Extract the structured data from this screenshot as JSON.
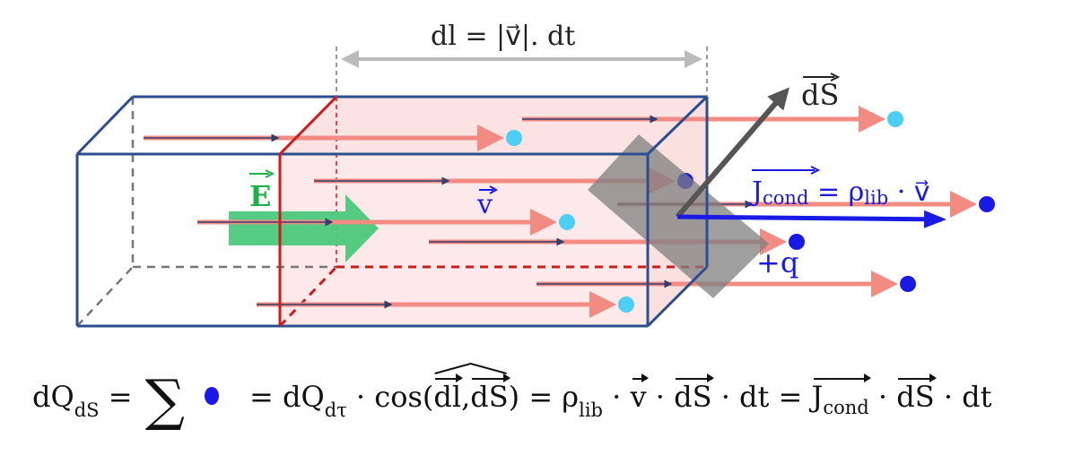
{
  "labels": {
    "dl": "dl = |v⃗|. dt",
    "dS": "dS",
    "E": "E",
    "v": "v",
    "J": "J",
    "J_sub": "cond",
    "J_eq": " = ρ",
    "J_rho_sub": "lib",
    "J_v": " · v⃗",
    "charge": "+q"
  },
  "formula": {
    "p1": "dQ",
    "p1_sub": "dS",
    "p2": " = ",
    "p3": "= dQ",
    "p3_sub": "dτ",
    "p4": " · cos(",
    "p5": "dl",
    "p6": ",",
    "p7": "dS",
    "p8": ") = ρ",
    "p8_sub": "lib",
    "p9": " · ",
    "p10": "v",
    "p11": " · ",
    "p12": "dS",
    "p13": " · dt = ",
    "p14": "J",
    "p14_sub": "cond",
    "p15": " · ",
    "p16": "dS",
    "p17": " · dt"
  },
  "colors": {
    "box": "#2b4f8e",
    "volume_edge": "#d11a1a",
    "volume_fill": "#fde9e9",
    "trajectory": "#f28b82",
    "field": "#4cc97c",
    "current": "#1a1ae6",
    "charge_inside": "#1a1ae6",
    "charge_passed": "#4dcff5",
    "surface": "#7f7f7f"
  },
  "particles": [
    {
      "color": "charge_passed"
    },
    {
      "color": "charge_passed"
    },
    {
      "color": "charge_inside"
    },
    {
      "color": "charge_inside"
    },
    {
      "color": "charge_passed"
    },
    {
      "color": "charge_inside"
    },
    {
      "color": "charge_inside"
    },
    {
      "color": "charge_passed"
    }
  ]
}
